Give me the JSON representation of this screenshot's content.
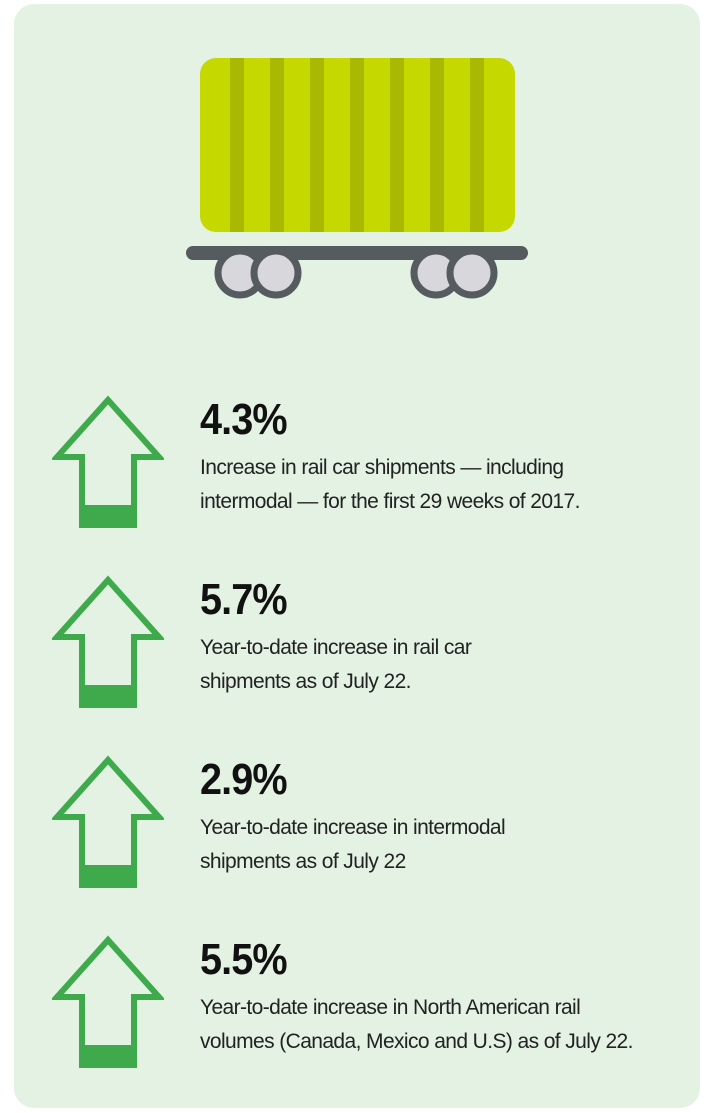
{
  "items": [
    {
      "stat": "4.3%",
      "lines": [
        "Increase in rail car shipments — including",
        "intermodal — for the first 29 weeks of 2017."
      ]
    },
    {
      "stat": "5.7%",
      "lines": [
        "Year-to-date increase in rail car",
        "shipments as of July 22."
      ]
    },
    {
      "stat": "2.9%",
      "lines": [
        "Year-to-date increase in intermodal",
        "shipments as of July 22"
      ]
    },
    {
      "stat": "5.5%",
      "lines": [
        "Year-to-date increase in North American rail",
        "volumes (Canada, Mexico and U.S) as of July 22."
      ]
    }
  ]
}
